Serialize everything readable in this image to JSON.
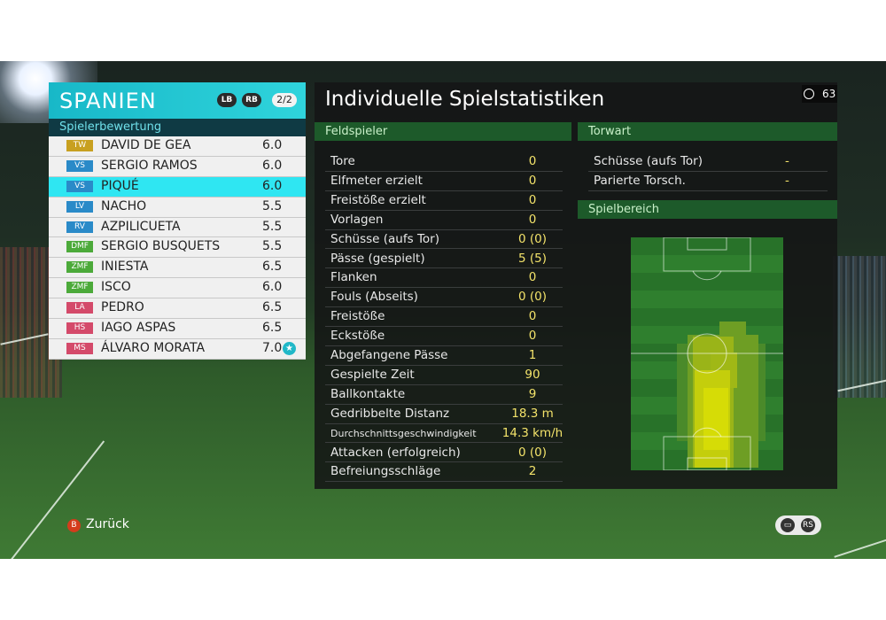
{
  "team": {
    "name": "SPANIEN",
    "lb_label": "LB",
    "rb_label": "RB",
    "page": "2/2",
    "ratings_title": "Spielerbewertung",
    "players": [
      {
        "pos": "TW",
        "name": "DAVID DE GEA",
        "rating": "6.0",
        "pos_color": "#c8a020"
      },
      {
        "pos": "VS",
        "name": "SERGIO RAMOS",
        "rating": "6.0",
        "pos_color": "#2a8ac8"
      },
      {
        "pos": "VS",
        "name": "PIQUÉ",
        "rating": "6.0",
        "pos_color": "#2a8ac8"
      },
      {
        "pos": "LV",
        "name": "NACHO",
        "rating": "5.5",
        "pos_color": "#2a8ac8"
      },
      {
        "pos": "RV",
        "name": "AZPILICUETA",
        "rating": "5.5",
        "pos_color": "#2a8ac8"
      },
      {
        "pos": "DMF",
        "name": "SERGIO BUSQUETS",
        "rating": "5.5",
        "pos_color": "#4caa3a"
      },
      {
        "pos": "ZMF",
        "name": "INIESTA",
        "rating": "6.5",
        "pos_color": "#4caa3a"
      },
      {
        "pos": "ZMF",
        "name": "ISCO",
        "rating": "6.0",
        "pos_color": "#4caa3a"
      },
      {
        "pos": "LA",
        "name": "PEDRO",
        "rating": "6.5",
        "pos_color": "#d44a6a"
      },
      {
        "pos": "HS",
        "name": "IAGO ASPAS",
        "rating": "6.5",
        "pos_color": "#d44a6a"
      },
      {
        "pos": "MS",
        "name": "ÁLVARO MORATA",
        "rating": "7.0",
        "pos_color": "#d44a6a",
        "star": true
      }
    ],
    "selected_index": 2
  },
  "stats": {
    "title": "Individuelle Spielstatistiken",
    "timer_icon": "clock-icon",
    "timer_value": "63",
    "field_header": "Feldspieler",
    "field_rows": [
      {
        "label": "Tore",
        "value": "0"
      },
      {
        "label": "Elfmeter erzielt",
        "value": "0"
      },
      {
        "label": "Freistöße erzielt",
        "value": "0"
      },
      {
        "label": "Vorlagen",
        "value": "0"
      },
      {
        "label": "Schüsse (aufs Tor)",
        "value": "0 (0)"
      },
      {
        "label": "Pässe (gespielt)",
        "value": "5 (5)"
      },
      {
        "label": "Flanken",
        "value": "0"
      },
      {
        "label": "Fouls (Abseits)",
        "value": "0 (0)"
      },
      {
        "label": "Freistöße",
        "value": "0"
      },
      {
        "label": "Eckstöße",
        "value": "0"
      },
      {
        "label": "Abgefangene Pässe",
        "value": "1"
      },
      {
        "label": "Gespielte Zeit",
        "value": "90"
      },
      {
        "label": "Ballkontakte",
        "value": "9"
      },
      {
        "label": "Gedribbelte Distanz",
        "value": "18.3 m"
      },
      {
        "label": "Durchschnittsgeschwindigkeit",
        "value": "14.3 km/h"
      },
      {
        "label": "Attacken (erfolgreich)",
        "value": "0 (0)"
      },
      {
        "label": "Befreiungsschläge",
        "value": "2"
      }
    ],
    "keeper_header": "Torwart",
    "keeper_rows": [
      {
        "label": "Schüsse (aufs Tor)",
        "value": "-"
      },
      {
        "label": "Parierte Torsch.",
        "value": "-"
      }
    ],
    "area_header": "Spielbereich"
  },
  "footer": {
    "back_button": "B",
    "back_label": "Zurück",
    "chat_icon": "chat-icon",
    "rs_label": "RS"
  },
  "colors": {
    "team_accent": "#2fd4dc",
    "selected_row": "#2fe6f2",
    "stat_value": "#f3e36a",
    "section_green": "#1d5a2a"
  }
}
